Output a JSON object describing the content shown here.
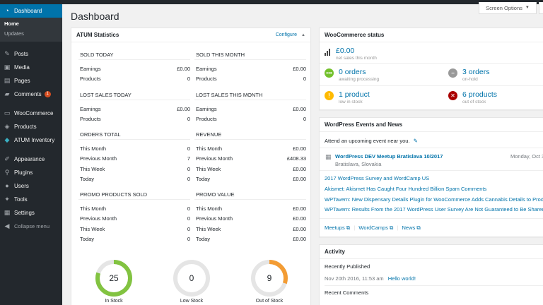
{
  "sidebar": {
    "dashboard": "Dashboard",
    "home": "Home",
    "updates": "Updates",
    "posts": "Posts",
    "media": "Media",
    "pages": "Pages",
    "comments": "Comments",
    "comments_badge": "1",
    "woocommerce": "WooCommerce",
    "products": "Products",
    "atum_inventory": "ATUM Inventory",
    "appearance": "Appearance",
    "plugins": "Plugins",
    "users": "Users",
    "tools": "Tools",
    "settings": "Settings",
    "collapse": "Collapse menu"
  },
  "header": {
    "title": "Dashboard",
    "screen_options": "Screen Options"
  },
  "atum": {
    "title": "ATUM Statistics",
    "configure": "Configure",
    "sold_today": {
      "heading": "SOLD TODAY",
      "earnings_label": "Earnings",
      "earnings": "£0.00",
      "products_label": "Products",
      "products": "0"
    },
    "sold_month": {
      "heading": "SOLD THIS MONTH",
      "earnings_label": "Earnings",
      "earnings": "£0.00",
      "products_label": "Products",
      "products": "0"
    },
    "lost_today": {
      "heading": "LOST SALES TODAY",
      "earnings_label": "Earnings",
      "earnings": "£0.00",
      "products_label": "Products",
      "products": "0"
    },
    "lost_month": {
      "heading": "LOST SALES THIS MONTH",
      "earnings_label": "Earnings",
      "earnings": "£0.00",
      "products_label": "Products",
      "products": "0"
    },
    "orders_total": {
      "heading": "ORDERS TOTAL",
      "rows": [
        {
          "label": "This Month",
          "value": "0"
        },
        {
          "label": "Previous Month",
          "value": "7"
        },
        {
          "label": "This Week",
          "value": "0"
        },
        {
          "label": "Today",
          "value": "0"
        }
      ]
    },
    "revenue": {
      "heading": "REVENUE",
      "rows": [
        {
          "label": "This Month",
          "value": "£0.00"
        },
        {
          "label": "Previous Month",
          "value": "£408.33"
        },
        {
          "label": "This Week",
          "value": "£0.00"
        },
        {
          "label": "Today",
          "value": "£0.00"
        }
      ]
    },
    "promo_sold": {
      "heading": "PROMO PRODUCTS SOLD",
      "rows": [
        {
          "label": "This Month",
          "value": "0"
        },
        {
          "label": "Previous Month",
          "value": "0"
        },
        {
          "label": "This Week",
          "value": "0"
        },
        {
          "label": "Today",
          "value": "0"
        }
      ]
    },
    "promo_value": {
      "heading": "PROMO VALUE",
      "rows": [
        {
          "label": "This Month",
          "value": "£0.00"
        },
        {
          "label": "Previous Month",
          "value": "£0.00"
        },
        {
          "label": "This Week",
          "value": "£0.00"
        },
        {
          "label": "Today",
          "value": "£0.00"
        }
      ]
    },
    "gauges": [
      {
        "value": "25",
        "label": "In Stock",
        "fraction": 0.8,
        "color": "#82c341"
      },
      {
        "value": "0",
        "label": "Low Stock",
        "fraction": 0,
        "color": "#cccccc"
      },
      {
        "value": "9",
        "label": "Out of Stock",
        "fraction": 0.3,
        "color": "#f39c34"
      }
    ]
  },
  "woo": {
    "title": "WooCommerce status",
    "net_sales": "£0.00",
    "net_sales_label": "net sales this month",
    "orders_processing": "0 orders",
    "orders_processing_label": "awaiting processing",
    "orders_hold": "3 orders",
    "orders_hold_label": "on-hold",
    "low_stock": "1 product",
    "low_stock_label": "low in stock",
    "out_stock": "6 products",
    "out_stock_label": "out of stock",
    "colors": {
      "processing": "#73c12c",
      "hold": "#999999",
      "low": "#ffba00",
      "out": "#a00000"
    }
  },
  "events": {
    "title": "WordPress Events and News",
    "attend": "Attend an upcoming event near you.",
    "event_title": "WordPress DEV Meetup Bratislava 10/2017",
    "event_place": "Bratislava, Slovakia",
    "event_date": "Monday, Oct 3",
    "news": [
      "2017 WordPress Survey and WordCamp US",
      "Akismet: Akismet Has Caught Four Hundred Billion Spam Comments",
      "WPTavern: New Dispensary Details Plugin for WooCommerce Adds Cannabis Details to Produ",
      "WPTavern: Results From the 2017 WordPress User Survey Are Not Guaranteed to Be Shared"
    ],
    "footer": {
      "meetups": "Meetups",
      "wordcamps": "WordCamps",
      "news": "News"
    }
  },
  "activity": {
    "title": "Activity",
    "recently_published": "Recently Published",
    "pub_date": "Nov 20th 2016, 11:53 am",
    "pub_link": "Hello world!",
    "recent_comments": "Recent Comments"
  }
}
